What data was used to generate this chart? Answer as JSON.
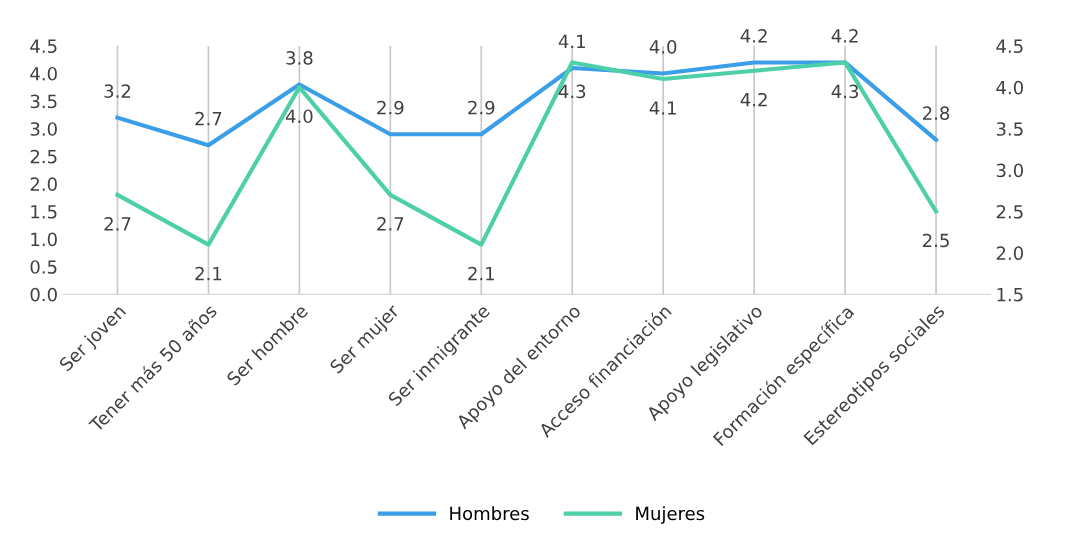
{
  "chart_data": {
    "type": "line",
    "categories": [
      "Ser joven",
      "Tener más 50 años",
      "Ser hombre",
      "Ser mujer",
      "Ser inmigrante",
      "Apoyo del entorno",
      "Acceso financiación",
      "Apoyo legislativo",
      "Formación específica",
      "Estereotipos sociales"
    ],
    "series": [
      {
        "name": "Hombres",
        "color": "#3a9ee8",
        "values": [
          3.2,
          2.7,
          3.8,
          2.9,
          2.9,
          4.1,
          4.0,
          4.2,
          4.2,
          2.8
        ],
        "value_labels": [
          "3.2",
          "2.7",
          "3.8",
          "2.9",
          "2.9",
          "4.1",
          "4.0",
          "4.2",
          "4.2",
          "2.8"
        ]
      },
      {
        "name": "Mujeres",
        "color": "#4dcfa8",
        "axis": "y2",
        "values": [
          2.7,
          2.1,
          4.0,
          2.7,
          2.1,
          4.3,
          4.1,
          4.2,
          4.3,
          2.5
        ],
        "value_labels": [
          "2.7",
          "2.1",
          "4.0",
          "2.7",
          "2.1",
          "4.3",
          "4.1",
          "4.2",
          "4.3",
          "2.5"
        ]
      }
    ],
    "ylim": [
      0,
      4.5
    ],
    "yticks": [
      {
        "value": 0,
        "label": "0.0"
      },
      {
        "value": 0.5,
        "label": "0.5"
      },
      {
        "value": 1,
        "label": "1.0"
      },
      {
        "value": 1.5,
        "label": "1.5"
      },
      {
        "value": 2,
        "label": "2.0"
      },
      {
        "value": 2.5,
        "label": "2.5"
      },
      {
        "value": 3,
        "label": "3.0"
      },
      {
        "value": 3.5,
        "label": "3.5"
      },
      {
        "value": 4,
        "label": "4.0"
      },
      {
        "value": 4.5,
        "label": "4.5"
      }
    ],
    "y2lim": [
      1.5,
      4.5
    ],
    "y2ticks": [
      {
        "value": 1.5,
        "label": "1.5"
      },
      {
        "value": 2,
        "label": "2.0"
      },
      {
        "value": 2.5,
        "label": "2.5"
      },
      {
        "value": 3,
        "label": "3.0"
      },
      {
        "value": 3.5,
        "label": "3.5"
      },
      {
        "value": 4,
        "label": "4.0"
      },
      {
        "value": 4.5,
        "label": "4.5"
      }
    ],
    "grid": "x",
    "legend": "bottom",
    "marker": "none",
    "line_style": "solid"
  }
}
